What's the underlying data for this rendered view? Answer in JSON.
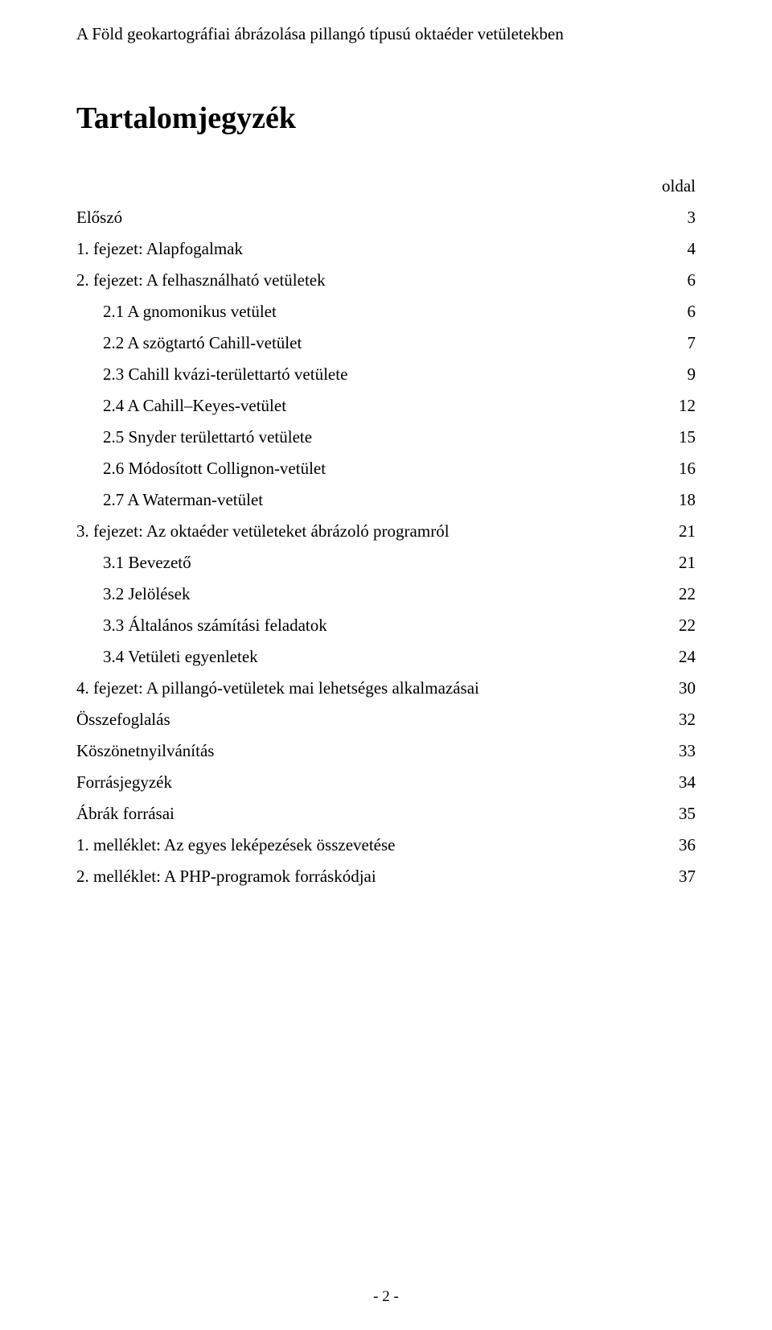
{
  "header": {
    "title": "A Föld geokartográfiai ábrázolása pillangó típusú oktaéder vetületekben"
  },
  "title": "Tartalomjegyzék",
  "column_label": "oldal",
  "toc": [
    {
      "label": "Előszó",
      "page": "3",
      "indent": 0
    },
    {
      "label": "1. fejezet: Alapfogalmak",
      "page": "4",
      "indent": 0
    },
    {
      "label": "2. fejezet: A felhasználható vetületek",
      "page": "6",
      "indent": 0
    },
    {
      "label": "2.1 A gnomonikus vetület",
      "page": "6",
      "indent": 1
    },
    {
      "label": "2.2 A szögtartó Cahill-vetület",
      "page": "7",
      "indent": 1
    },
    {
      "label": "2.3 Cahill kvázi-területtartó vetülete",
      "page": "9",
      "indent": 1
    },
    {
      "label": "2.4 A Cahill–Keyes-vetület",
      "page": "12",
      "indent": 1
    },
    {
      "label": "2.5 Snyder területtartó vetülete",
      "page": "15",
      "indent": 1
    },
    {
      "label": "2.6 Módosított Collignon-vetület",
      "page": "16",
      "indent": 1
    },
    {
      "label": "2.7 A Waterman-vetület",
      "page": "18",
      "indent": 1
    },
    {
      "label": "3. fejezet: Az oktaéder vetületeket ábrázoló programról",
      "page": "21",
      "indent": 0
    },
    {
      "label": "3.1 Bevezető",
      "page": "21",
      "indent": 1
    },
    {
      "label": "3.2 Jelölések",
      "page": "22",
      "indent": 1
    },
    {
      "label": "3.3 Általános számítási feladatok",
      "page": "22",
      "indent": 1
    },
    {
      "label": "3.4 Vetületi egyenletek",
      "page": "24",
      "indent": 1
    },
    {
      "label": "4. fejezet: A pillangó-vetületek mai lehetséges alkalmazásai",
      "page": "30",
      "indent": 0
    },
    {
      "label": "Összefoglalás",
      "page": "32",
      "indent": 0
    },
    {
      "label": "Köszönetnyilvánítás",
      "page": "33",
      "indent": 0
    },
    {
      "label": "Forrásjegyzék",
      "page": "34",
      "indent": 0
    },
    {
      "label": "Ábrák forrásai",
      "page": "35",
      "indent": 0
    },
    {
      "label": "1. melléklet: Az egyes leképezések összevetése",
      "page": "36",
      "indent": 0
    },
    {
      "label": "2. melléklet: A PHP-programok forráskódjai",
      "page": "37",
      "indent": 0
    }
  ],
  "page_number": "-  2  -"
}
